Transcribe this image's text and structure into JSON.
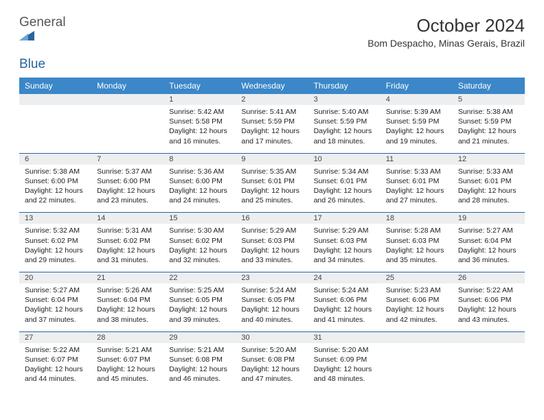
{
  "brand": {
    "name_a": "General",
    "name_b": "Blue"
  },
  "title": "October 2024",
  "location": "Bom Despacho, Minas Gerais, Brazil",
  "colors": {
    "header_bg": "#3b87c8",
    "rule": "#2a649e",
    "daynum_bg": "#eceeef"
  },
  "day_names": [
    "Sunday",
    "Monday",
    "Tuesday",
    "Wednesday",
    "Thursday",
    "Friday",
    "Saturday"
  ],
  "weeks": [
    {
      "nums": [
        "",
        "",
        "1",
        "2",
        "3",
        "4",
        "5"
      ],
      "cells": [
        null,
        null,
        {
          "rise": "Sunrise: 5:42 AM",
          "set": "Sunset: 5:58 PM",
          "dayl": "Daylight: 12 hours and 16 minutes."
        },
        {
          "rise": "Sunrise: 5:41 AM",
          "set": "Sunset: 5:59 PM",
          "dayl": "Daylight: 12 hours and 17 minutes."
        },
        {
          "rise": "Sunrise: 5:40 AM",
          "set": "Sunset: 5:59 PM",
          "dayl": "Daylight: 12 hours and 18 minutes."
        },
        {
          "rise": "Sunrise: 5:39 AM",
          "set": "Sunset: 5:59 PM",
          "dayl": "Daylight: 12 hours and 19 minutes."
        },
        {
          "rise": "Sunrise: 5:38 AM",
          "set": "Sunset: 5:59 PM",
          "dayl": "Daylight: 12 hours and 21 minutes."
        }
      ]
    },
    {
      "nums": [
        "6",
        "7",
        "8",
        "9",
        "10",
        "11",
        "12"
      ],
      "cells": [
        {
          "rise": "Sunrise: 5:38 AM",
          "set": "Sunset: 6:00 PM",
          "dayl": "Daylight: 12 hours and 22 minutes."
        },
        {
          "rise": "Sunrise: 5:37 AM",
          "set": "Sunset: 6:00 PM",
          "dayl": "Daylight: 12 hours and 23 minutes."
        },
        {
          "rise": "Sunrise: 5:36 AM",
          "set": "Sunset: 6:00 PM",
          "dayl": "Daylight: 12 hours and 24 minutes."
        },
        {
          "rise": "Sunrise: 5:35 AM",
          "set": "Sunset: 6:01 PM",
          "dayl": "Daylight: 12 hours and 25 minutes."
        },
        {
          "rise": "Sunrise: 5:34 AM",
          "set": "Sunset: 6:01 PM",
          "dayl": "Daylight: 12 hours and 26 minutes."
        },
        {
          "rise": "Sunrise: 5:33 AM",
          "set": "Sunset: 6:01 PM",
          "dayl": "Daylight: 12 hours and 27 minutes."
        },
        {
          "rise": "Sunrise: 5:33 AM",
          "set": "Sunset: 6:01 PM",
          "dayl": "Daylight: 12 hours and 28 minutes."
        }
      ]
    },
    {
      "nums": [
        "13",
        "14",
        "15",
        "16",
        "17",
        "18",
        "19"
      ],
      "cells": [
        {
          "rise": "Sunrise: 5:32 AM",
          "set": "Sunset: 6:02 PM",
          "dayl": "Daylight: 12 hours and 29 minutes."
        },
        {
          "rise": "Sunrise: 5:31 AM",
          "set": "Sunset: 6:02 PM",
          "dayl": "Daylight: 12 hours and 31 minutes."
        },
        {
          "rise": "Sunrise: 5:30 AM",
          "set": "Sunset: 6:02 PM",
          "dayl": "Daylight: 12 hours and 32 minutes."
        },
        {
          "rise": "Sunrise: 5:29 AM",
          "set": "Sunset: 6:03 PM",
          "dayl": "Daylight: 12 hours and 33 minutes."
        },
        {
          "rise": "Sunrise: 5:29 AM",
          "set": "Sunset: 6:03 PM",
          "dayl": "Daylight: 12 hours and 34 minutes."
        },
        {
          "rise": "Sunrise: 5:28 AM",
          "set": "Sunset: 6:03 PM",
          "dayl": "Daylight: 12 hours and 35 minutes."
        },
        {
          "rise": "Sunrise: 5:27 AM",
          "set": "Sunset: 6:04 PM",
          "dayl": "Daylight: 12 hours and 36 minutes."
        }
      ]
    },
    {
      "nums": [
        "20",
        "21",
        "22",
        "23",
        "24",
        "25",
        "26"
      ],
      "cells": [
        {
          "rise": "Sunrise: 5:27 AM",
          "set": "Sunset: 6:04 PM",
          "dayl": "Daylight: 12 hours and 37 minutes."
        },
        {
          "rise": "Sunrise: 5:26 AM",
          "set": "Sunset: 6:04 PM",
          "dayl": "Daylight: 12 hours and 38 minutes."
        },
        {
          "rise": "Sunrise: 5:25 AM",
          "set": "Sunset: 6:05 PM",
          "dayl": "Daylight: 12 hours and 39 minutes."
        },
        {
          "rise": "Sunrise: 5:24 AM",
          "set": "Sunset: 6:05 PM",
          "dayl": "Daylight: 12 hours and 40 minutes."
        },
        {
          "rise": "Sunrise: 5:24 AM",
          "set": "Sunset: 6:06 PM",
          "dayl": "Daylight: 12 hours and 41 minutes."
        },
        {
          "rise": "Sunrise: 5:23 AM",
          "set": "Sunset: 6:06 PM",
          "dayl": "Daylight: 12 hours and 42 minutes."
        },
        {
          "rise": "Sunrise: 5:22 AM",
          "set": "Sunset: 6:06 PM",
          "dayl": "Daylight: 12 hours and 43 minutes."
        }
      ]
    },
    {
      "nums": [
        "27",
        "28",
        "29",
        "30",
        "31",
        "",
        ""
      ],
      "cells": [
        {
          "rise": "Sunrise: 5:22 AM",
          "set": "Sunset: 6:07 PM",
          "dayl": "Daylight: 12 hours and 44 minutes."
        },
        {
          "rise": "Sunrise: 5:21 AM",
          "set": "Sunset: 6:07 PM",
          "dayl": "Daylight: 12 hours and 45 minutes."
        },
        {
          "rise": "Sunrise: 5:21 AM",
          "set": "Sunset: 6:08 PM",
          "dayl": "Daylight: 12 hours and 46 minutes."
        },
        {
          "rise": "Sunrise: 5:20 AM",
          "set": "Sunset: 6:08 PM",
          "dayl": "Daylight: 12 hours and 47 minutes."
        },
        {
          "rise": "Sunrise: 5:20 AM",
          "set": "Sunset: 6:09 PM",
          "dayl": "Daylight: 12 hours and 48 minutes."
        },
        null,
        null
      ]
    }
  ]
}
